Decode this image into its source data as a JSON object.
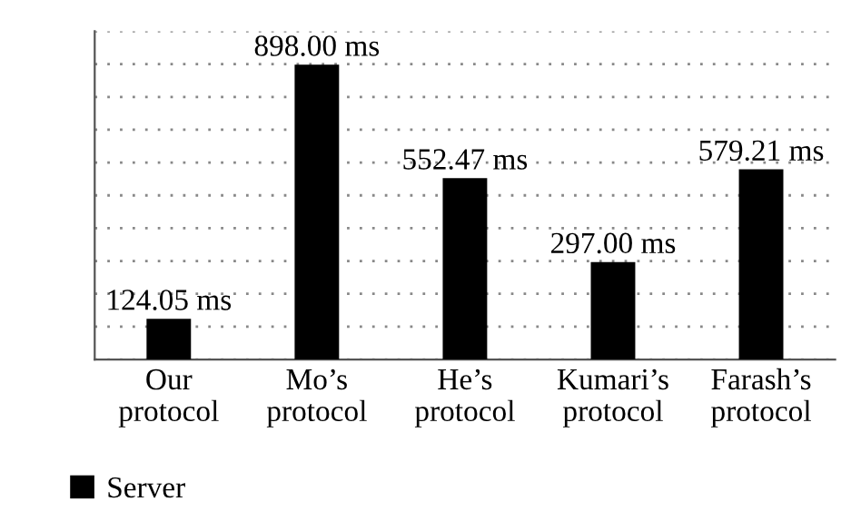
{
  "chart_data": {
    "type": "bar",
    "categories": [
      "Our\nprotocol",
      "Mo’s\nprotocol",
      "He’s\nprotocol",
      "Kumari’s\nprotocol",
      "Farash’s\nprotocol"
    ],
    "series": [
      {
        "name": "Server",
        "color": "#000000",
        "values": [
          124.05,
          898.0,
          552.47,
          297.0,
          579.21
        ],
        "value_labels": [
          "124.05 ms",
          "898.00 ms",
          "552.47 ms",
          "297.00 ms",
          "579.21 ms"
        ]
      }
    ],
    "ylim": [
      0,
      1000
    ],
    "yticks": [
      {
        "value": 0,
        "label": null
      },
      {
        "value": 100,
        "label": null
      },
      {
        "value": 200,
        "label": null
      },
      {
        "value": 300,
        "label": null
      },
      {
        "value": 400,
        "label": null
      },
      {
        "value": 500,
        "label": null
      },
      {
        "value": 600,
        "label": null
      },
      {
        "value": 700,
        "label": null
      },
      {
        "value": 800,
        "label": null
      },
      {
        "value": 900,
        "label": null
      },
      {
        "value": 1000,
        "label": null
      }
    ],
    "tick_labels": "x",
    "grid": "y",
    "line_style": "dotted",
    "legend": "bottom left"
  }
}
